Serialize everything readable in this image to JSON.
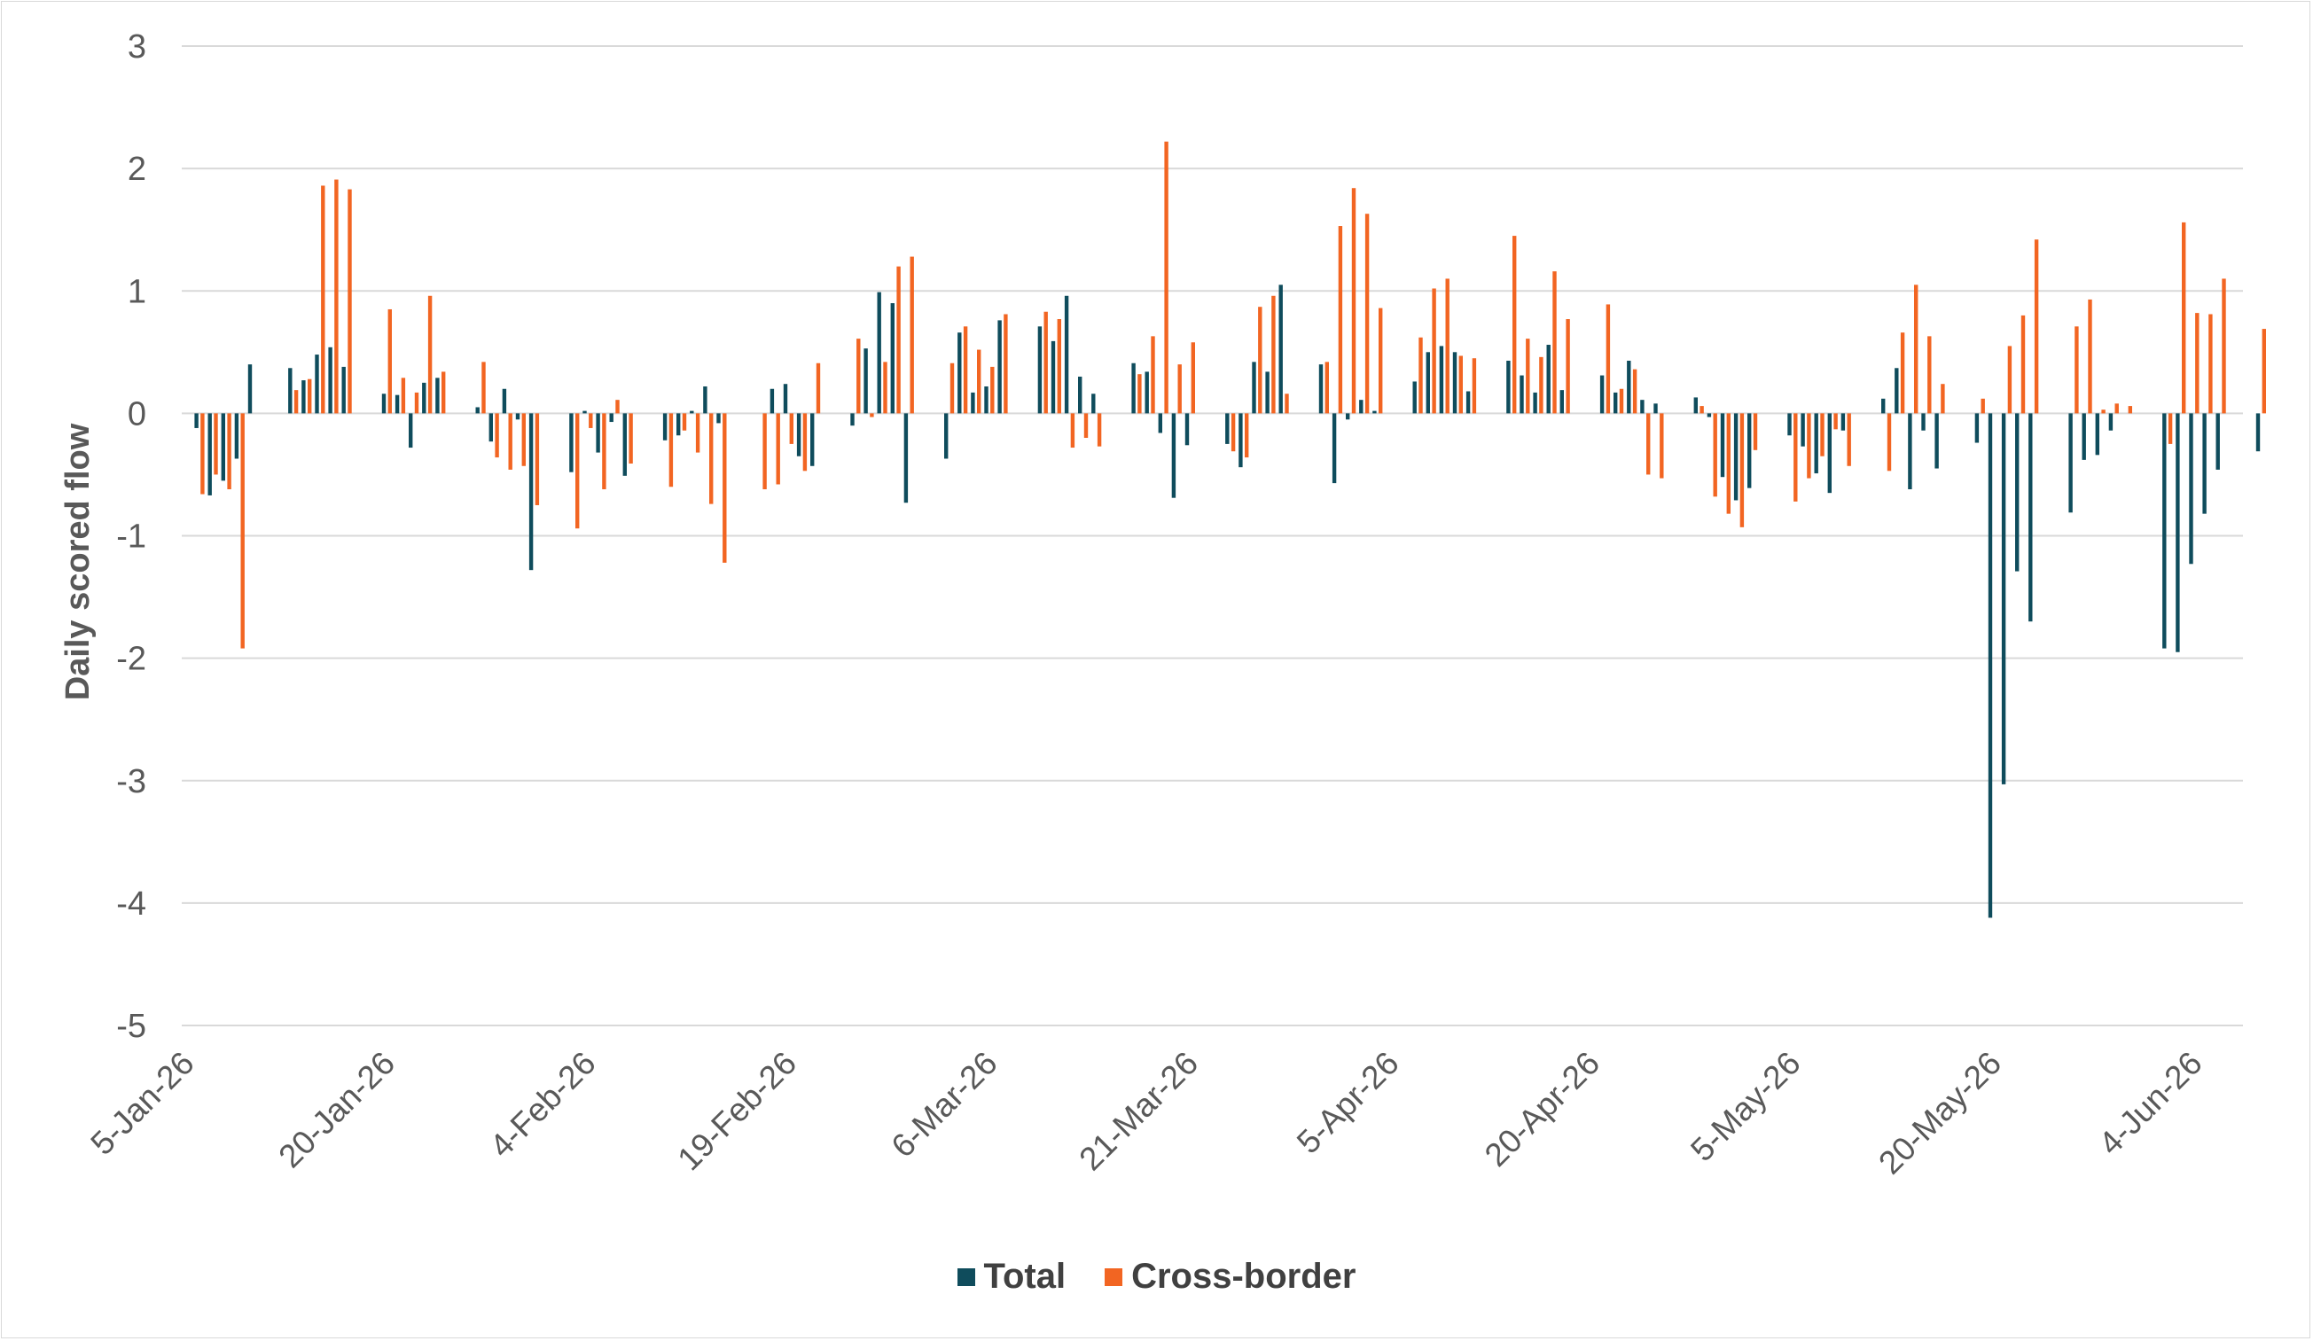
{
  "chart_data": {
    "type": "bar",
    "ylabel": "Daily scored flow",
    "xlabel": "",
    "ylim": [
      -5,
      3
    ],
    "yticks": [
      3,
      2,
      1,
      0,
      -1,
      -2,
      -3,
      -4,
      -5
    ],
    "grid": "horizontal",
    "legend_position": "bottom",
    "start_date": "2026-01-05",
    "x_tick_labels": [
      "5-Jan-26",
      "20-Jan-26",
      "4-Feb-26",
      "19-Feb-26",
      "6-Mar-26",
      "21-Mar-26",
      "5-Apr-26",
      "20-Apr-26",
      "5-May-26",
      "20-May-26",
      "4-Jun-26"
    ],
    "categories": [
      "2026-01-05",
      "2026-01-06",
      "2026-01-07",
      "2026-01-08",
      "2026-01-09",
      "2026-01-12",
      "2026-01-13",
      "2026-01-14",
      "2026-01-15",
      "2026-01-16",
      "2026-01-19",
      "2026-01-20",
      "2026-01-21",
      "2026-01-22",
      "2026-01-23",
      "2026-01-26",
      "2026-01-27",
      "2026-01-28",
      "2026-01-29",
      "2026-01-30",
      "2026-02-02",
      "2026-02-03",
      "2026-02-04",
      "2026-02-05",
      "2026-02-06",
      "2026-02-09",
      "2026-02-10",
      "2026-02-11",
      "2026-02-12",
      "2026-02-13",
      "2026-02-16",
      "2026-02-17",
      "2026-02-18",
      "2026-02-19",
      "2026-02-20",
      "2026-02-23",
      "2026-02-24",
      "2026-02-25",
      "2026-02-26",
      "2026-02-27",
      "2026-03-02",
      "2026-03-03",
      "2026-03-04",
      "2026-03-05",
      "2026-03-06",
      "2026-03-09",
      "2026-03-10",
      "2026-03-11",
      "2026-03-12",
      "2026-03-13",
      "2026-03-16",
      "2026-03-17",
      "2026-03-18",
      "2026-03-19",
      "2026-03-20",
      "2026-03-23",
      "2026-03-24",
      "2026-03-25",
      "2026-03-26",
      "2026-03-27",
      "2026-03-30",
      "2026-03-31",
      "2026-04-01",
      "2026-04-02",
      "2026-04-03",
      "2026-04-06",
      "2026-04-07",
      "2026-04-08",
      "2026-04-09",
      "2026-04-10",
      "2026-04-13",
      "2026-04-14",
      "2026-04-15",
      "2026-04-16",
      "2026-04-17",
      "2026-04-20",
      "2026-04-21",
      "2026-04-22",
      "2026-04-23",
      "2026-04-24",
      "2026-04-27",
      "2026-04-28",
      "2026-04-29",
      "2026-04-30",
      "2026-05-01",
      "2026-05-04",
      "2026-05-05",
      "2026-05-06",
      "2026-05-07",
      "2026-05-08",
      "2026-05-11",
      "2026-05-12",
      "2026-05-13",
      "2026-05-14",
      "2026-05-15",
      "2026-05-18",
      "2026-05-19",
      "2026-05-20",
      "2026-05-21",
      "2026-05-22",
      "2026-05-25",
      "2026-05-26",
      "2026-05-27",
      "2026-05-28",
      "2026-05-29",
      "2026-06-01",
      "2026-06-02",
      "2026-06-03",
      "2026-06-04",
      "2026-06-05",
      "2026-06-08"
    ],
    "series": [
      {
        "name": "Total",
        "color": "#0f4c5c",
        "values": [
          -0.12,
          -0.67,
          -0.55,
          -0.37,
          0.4,
          0.37,
          0.27,
          0.48,
          0.54,
          0.38,
          0.16,
          0.15,
          -0.28,
          0.25,
          0.29,
          0.05,
          -0.23,
          0.2,
          -0.05,
          -1.28,
          -0.48,
          0.02,
          -0.32,
          -0.07,
          -0.51,
          -0.22,
          -0.18,
          0.02,
          0.22,
          -0.08,
          0.0,
          0.2,
          0.24,
          -0.35,
          -0.43,
          -0.1,
          0.53,
          0.99,
          0.9,
          -0.73,
          -0.37,
          0.66,
          0.17,
          0.22,
          0.76,
          0.71,
          0.59,
          0.96,
          0.3,
          0.16,
          0.41,
          0.34,
          -0.16,
          -0.69,
          -0.26,
          -0.25,
          -0.44,
          0.42,
          0.34,
          1.05,
          0.4,
          -0.57,
          -0.05,
          0.11,
          0.02,
          0.26,
          0.5,
          0.55,
          0.5,
          0.18,
          0.43,
          0.31,
          0.17,
          0.56,
          0.19,
          0.31,
          0.17,
          0.43,
          0.11,
          0.08,
          0.13,
          -0.03,
          -0.52,
          -0.71,
          -0.61,
          -0.18,
          -0.27,
          -0.49,
          -0.65,
          -0.14,
          0.12,
          0.37,
          -0.62,
          -0.14,
          -0.45,
          -0.24,
          -4.12,
          -3.03,
          -1.29,
          -1.7,
          -0.81,
          -0.38,
          -0.34,
          -0.14,
          0.0,
          -1.92,
          -1.95,
          -1.23,
          -0.82,
          -0.46,
          -0.31
        ]
      },
      {
        "name": "Cross-border",
        "color": "#f26522",
        "values": [
          -0.66,
          -0.5,
          -0.62,
          -1.92,
          0.0,
          0.19,
          0.28,
          1.86,
          1.91,
          1.83,
          0.85,
          0.29,
          0.17,
          0.96,
          0.34,
          0.42,
          -0.36,
          -0.46,
          -0.43,
          -0.75,
          -0.94,
          -0.12,
          -0.62,
          0.11,
          -0.41,
          -0.6,
          -0.14,
          -0.32,
          -0.74,
          -1.22,
          -0.62,
          -0.58,
          -0.25,
          -0.47,
          0.41,
          0.61,
          -0.03,
          0.42,
          1.2,
          1.28,
          0.41,
          0.71,
          0.52,
          0.38,
          0.81,
          0.83,
          0.77,
          -0.28,
          -0.2,
          -0.27,
          0.32,
          0.63,
          2.22,
          0.4,
          0.58,
          -0.31,
          -0.36,
          0.87,
          0.96,
          0.16,
          0.42,
          1.53,
          1.84,
          1.63,
          0.86,
          0.62,
          1.02,
          1.1,
          0.47,
          0.45,
          1.45,
          0.61,
          0.46,
          1.16,
          0.77,
          0.89,
          0.2,
          0.36,
          -0.5,
          -0.53,
          0.06,
          -0.68,
          -0.82,
          -0.93,
          -0.3,
          -0.72,
          -0.53,
          -0.35,
          -0.13,
          -0.43,
          -0.47,
          0.66,
          1.05,
          0.63,
          0.24,
          0.12,
          0.0,
          0.55,
          0.8,
          1.42,
          0.71,
          0.93,
          0.03,
          0.08,
          0.06,
          -0.25,
          1.56,
          0.82,
          0.81,
          1.1,
          0.69
        ]
      }
    ]
  }
}
